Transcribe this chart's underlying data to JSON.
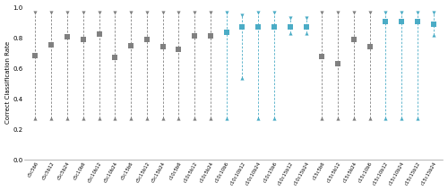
{
  "categories": [
    "c5c5b6",
    "c5c5b12",
    "c5c5b24",
    "c5c10b6",
    "c5c10b12",
    "c5c10b24",
    "c5c15b6",
    "c5c15b12",
    "c5c15b24",
    "c10c5b6",
    "c10c5b12",
    "c10c5b24",
    "c10c10b6",
    "c10c10b12",
    "c10c10b24",
    "c10c15b6",
    "c10c15b12",
    "c10c15b24",
    "c15c5b6",
    "c15c5b12",
    "c15c5b24",
    "c15c10b6",
    "c15c10b12",
    "c15c10b24",
    "c15c15b12",
    "c15c15b24"
  ],
  "means": [
    0.685,
    0.755,
    0.81,
    0.795,
    0.83,
    0.675,
    0.75,
    0.795,
    0.745,
    0.73,
    0.815,
    0.815,
    0.84,
    0.875,
    0.875,
    0.875,
    0.875,
    0.875,
    0.68,
    0.635,
    0.79,
    0.745,
    0.91,
    0.91,
    0.91,
    0.895
  ],
  "maxs": [
    0.97,
    0.97,
    0.97,
    0.97,
    0.97,
    0.97,
    0.97,
    0.97,
    0.97,
    0.97,
    0.97,
    0.97,
    0.97,
    0.95,
    0.97,
    0.97,
    0.935,
    0.935,
    0.97,
    0.97,
    0.97,
    0.97,
    0.97,
    0.97,
    0.97,
    0.97
  ],
  "mins": [
    0.27,
    0.27,
    0.27,
    0.27,
    0.27,
    0.27,
    0.27,
    0.27,
    0.27,
    0.27,
    0.27,
    0.27,
    0.27,
    0.54,
    0.27,
    0.27,
    0.835,
    0.835,
    0.27,
    0.27,
    0.27,
    0.27,
    0.27,
    0.27,
    0.27,
    0.82
  ],
  "is_blue": [
    false,
    false,
    false,
    false,
    false,
    false,
    false,
    false,
    false,
    false,
    false,
    false,
    true,
    true,
    true,
    true,
    true,
    true,
    false,
    false,
    false,
    false,
    true,
    true,
    true,
    true
  ],
  "blue_color": "#4bacc6",
  "gray_color": "#808080",
  "ylabel": "Correct Classification Rate",
  "ylim": [
    0.0,
    1.02
  ],
  "yticks": [
    0.0,
    0.2,
    0.4,
    0.6,
    0.8,
    1.0
  ],
  "background_color": "#ffffff"
}
